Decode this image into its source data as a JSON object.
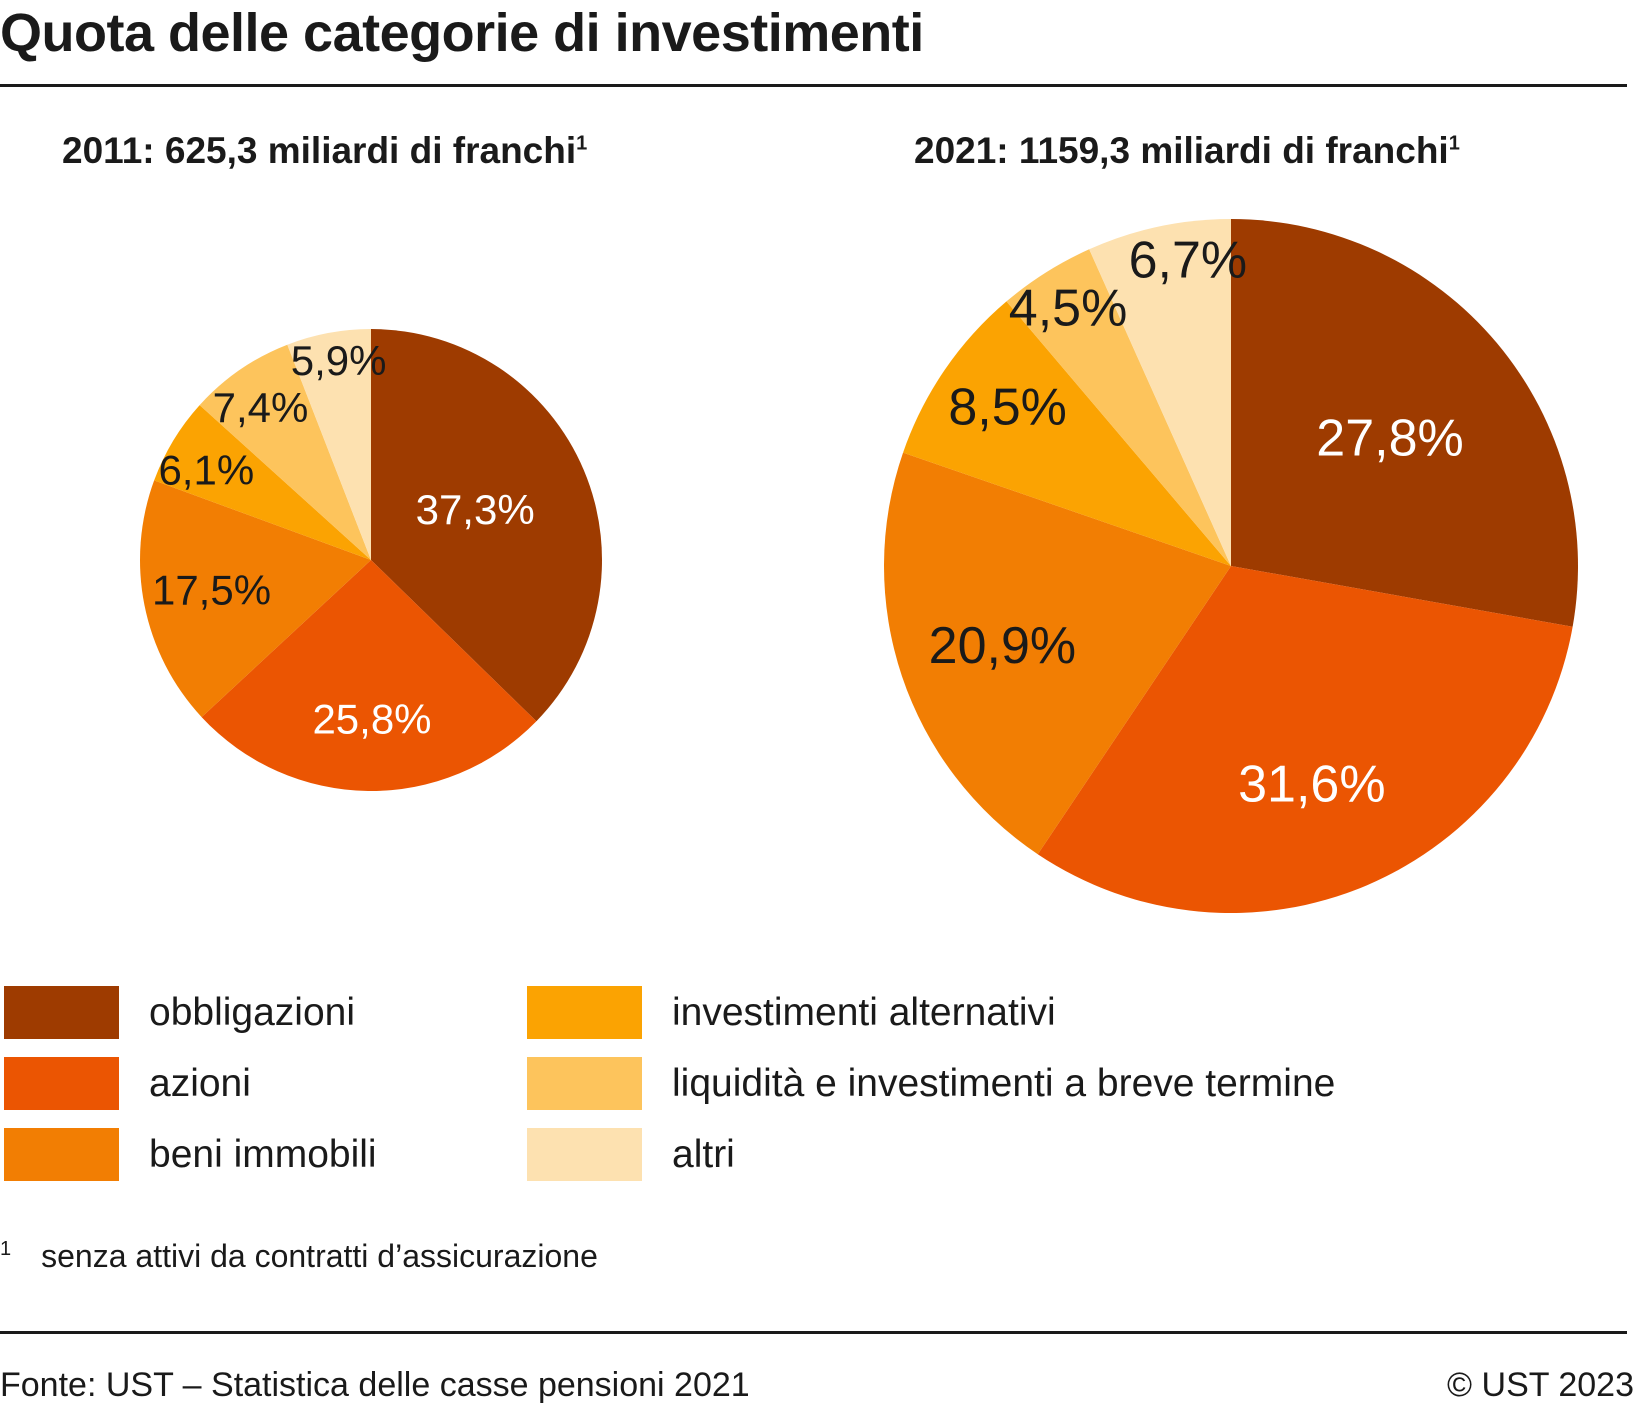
{
  "title": "Quota delle categorie di investimenti",
  "colors": [
    "#9E3B00",
    "#EB5502",
    "#F27E03",
    "#FBA302",
    "#FDC45C",
    "#FDE1B0"
  ],
  "chart_data": [
    {
      "type": "pie",
      "title": "2011: 625,3 miliardi di franchi",
      "title_note": "1",
      "categories": [
        "obbligazioni",
        "azioni",
        "beni immobili",
        "investimenti alternativi",
        "liquidità e investimenti a breve termine",
        "altri"
      ],
      "values": [
        37.3,
        25.8,
        17.5,
        6.1,
        7.4,
        5.9
      ],
      "labels": [
        "37,3%",
        "25,8%",
        "17,5%",
        "6,1%",
        "7,4%",
        "5,9%"
      ]
    },
    {
      "type": "pie",
      "title": "2021: 1159,3 miliardi di franchi",
      "title_note": "1",
      "categories": [
        "obbligazioni",
        "azioni",
        "beni immobili",
        "investimenti alternativi",
        "liquidità e investimenti a breve termine",
        "altri"
      ],
      "values": [
        27.8,
        31.6,
        20.9,
        8.5,
        4.5,
        6.7
      ],
      "labels": [
        "27,8%",
        "31,6%",
        "20,9%",
        "8,5%",
        "4,5%",
        "6,7%"
      ]
    }
  ],
  "legend": [
    "obbligazioni",
    "azioni",
    "beni immobili",
    "investimenti alternativi",
    "liquidità e investimenti a breve termine",
    "altri"
  ],
  "footnote": {
    "mark": "1",
    "text": "senza attivi da contratti d’assicurazione"
  },
  "source": "Fonte: UST – Statistica delle casse pensioni 2021",
  "copyright": "© UST 2023"
}
